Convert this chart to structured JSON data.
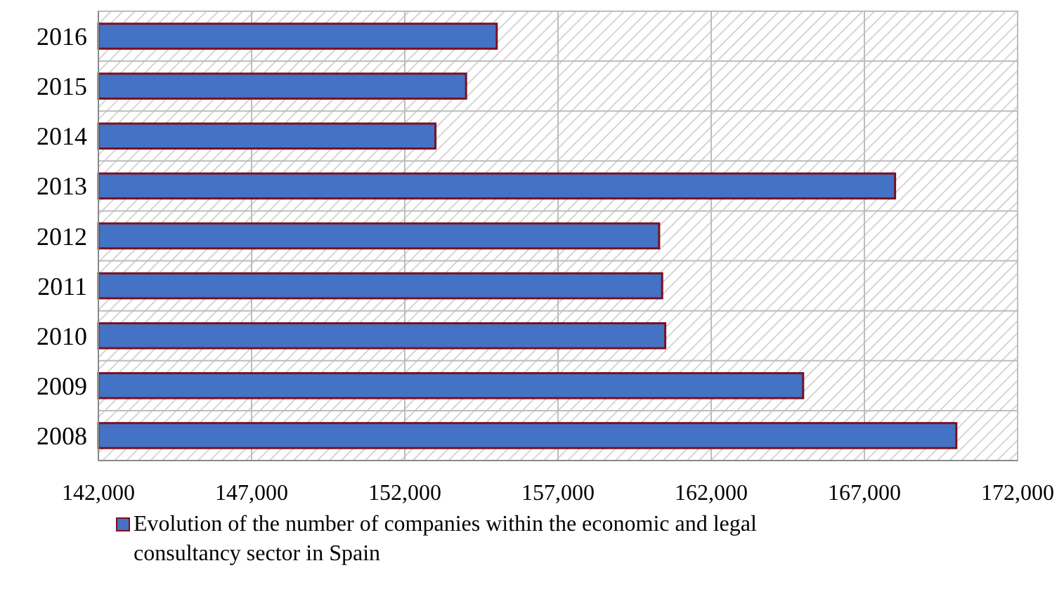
{
  "chart_data": {
    "type": "bar",
    "orientation": "horizontal",
    "categories": [
      "2016",
      "2015",
      "2014",
      "2013",
      "2012",
      "2011",
      "2010",
      "2009",
      "2008"
    ],
    "series": [
      {
        "name": "Evolution of the number of companies within the economic and legal consultancy sector in Spain",
        "color": "#4472c4",
        "values": [
          155000,
          154000,
          153000,
          168000,
          160300,
          160400,
          160500,
          165000,
          170000
        ]
      }
    ],
    "xlim": [
      142000,
      172000
    ],
    "xticks": [
      {
        "value": 142000,
        "label": "142,000"
      },
      {
        "value": 147000,
        "label": "147,000"
      },
      {
        "value": 152000,
        "label": "152,000"
      },
      {
        "value": 157000,
        "label": "157,000"
      },
      {
        "value": 162000,
        "label": "162,000"
      },
      {
        "value": 167000,
        "label": "167,000"
      },
      {
        "value": 172000,
        "label": "172,000"
      }
    ],
    "grid": true,
    "legend": "bottom"
  }
}
